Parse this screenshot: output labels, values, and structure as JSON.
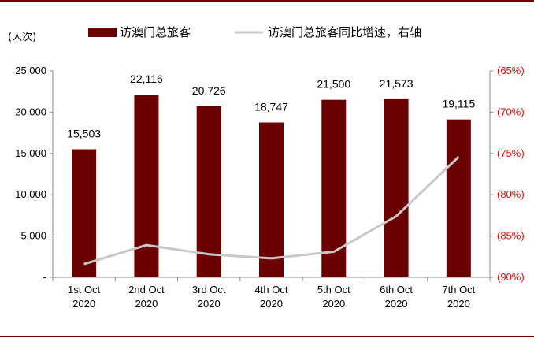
{
  "chart_data": {
    "type": "bar",
    "categories": [
      "1st Oct\n2020",
      "2nd Oct\n2020",
      "3rd Oct\n2020",
      "4th Oct\n2020",
      "5th Oct\n2020",
      "6th Oct\n2020",
      "7th Oct\n2020"
    ],
    "y_unit": "(人次)",
    "series": [
      {
        "name": "访澳门总旅客",
        "type": "bar",
        "axis": "left",
        "color": "#6b0000",
        "values": [
          15503,
          22116,
          20726,
          18747,
          21500,
          21573,
          19115
        ],
        "labels": [
          "15,503",
          "22,116",
          "20,726",
          "18,747",
          "21,500",
          "21,573",
          "19,115"
        ]
      },
      {
        "name": "访澳门总旅客同比增速，右轴",
        "type": "line",
        "axis": "right",
        "color": "#c8c8c8",
        "values": [
          -88.4,
          -86.1,
          -87.2,
          -87.7,
          -86.9,
          -82.6,
          -75.4
        ]
      }
    ],
    "ylim": [
      0,
      25000
    ],
    "yticks": [
      0,
      5000,
      10000,
      15000,
      20000,
      25000
    ],
    "ytick_labels": [
      "-",
      "5,000",
      "10,000",
      "15,000",
      "20,000",
      "25,000"
    ],
    "y2lim": [
      -90,
      -65
    ],
    "y2ticks": [
      -90,
      -85,
      -80,
      -75,
      -70,
      -65
    ],
    "y2tick_labels": [
      "(90%)",
      "(85%)",
      "(80%)",
      "(75%)",
      "(70%)",
      "(65%)"
    ],
    "y2_color": "#ff0000",
    "legend_position": "top"
  }
}
